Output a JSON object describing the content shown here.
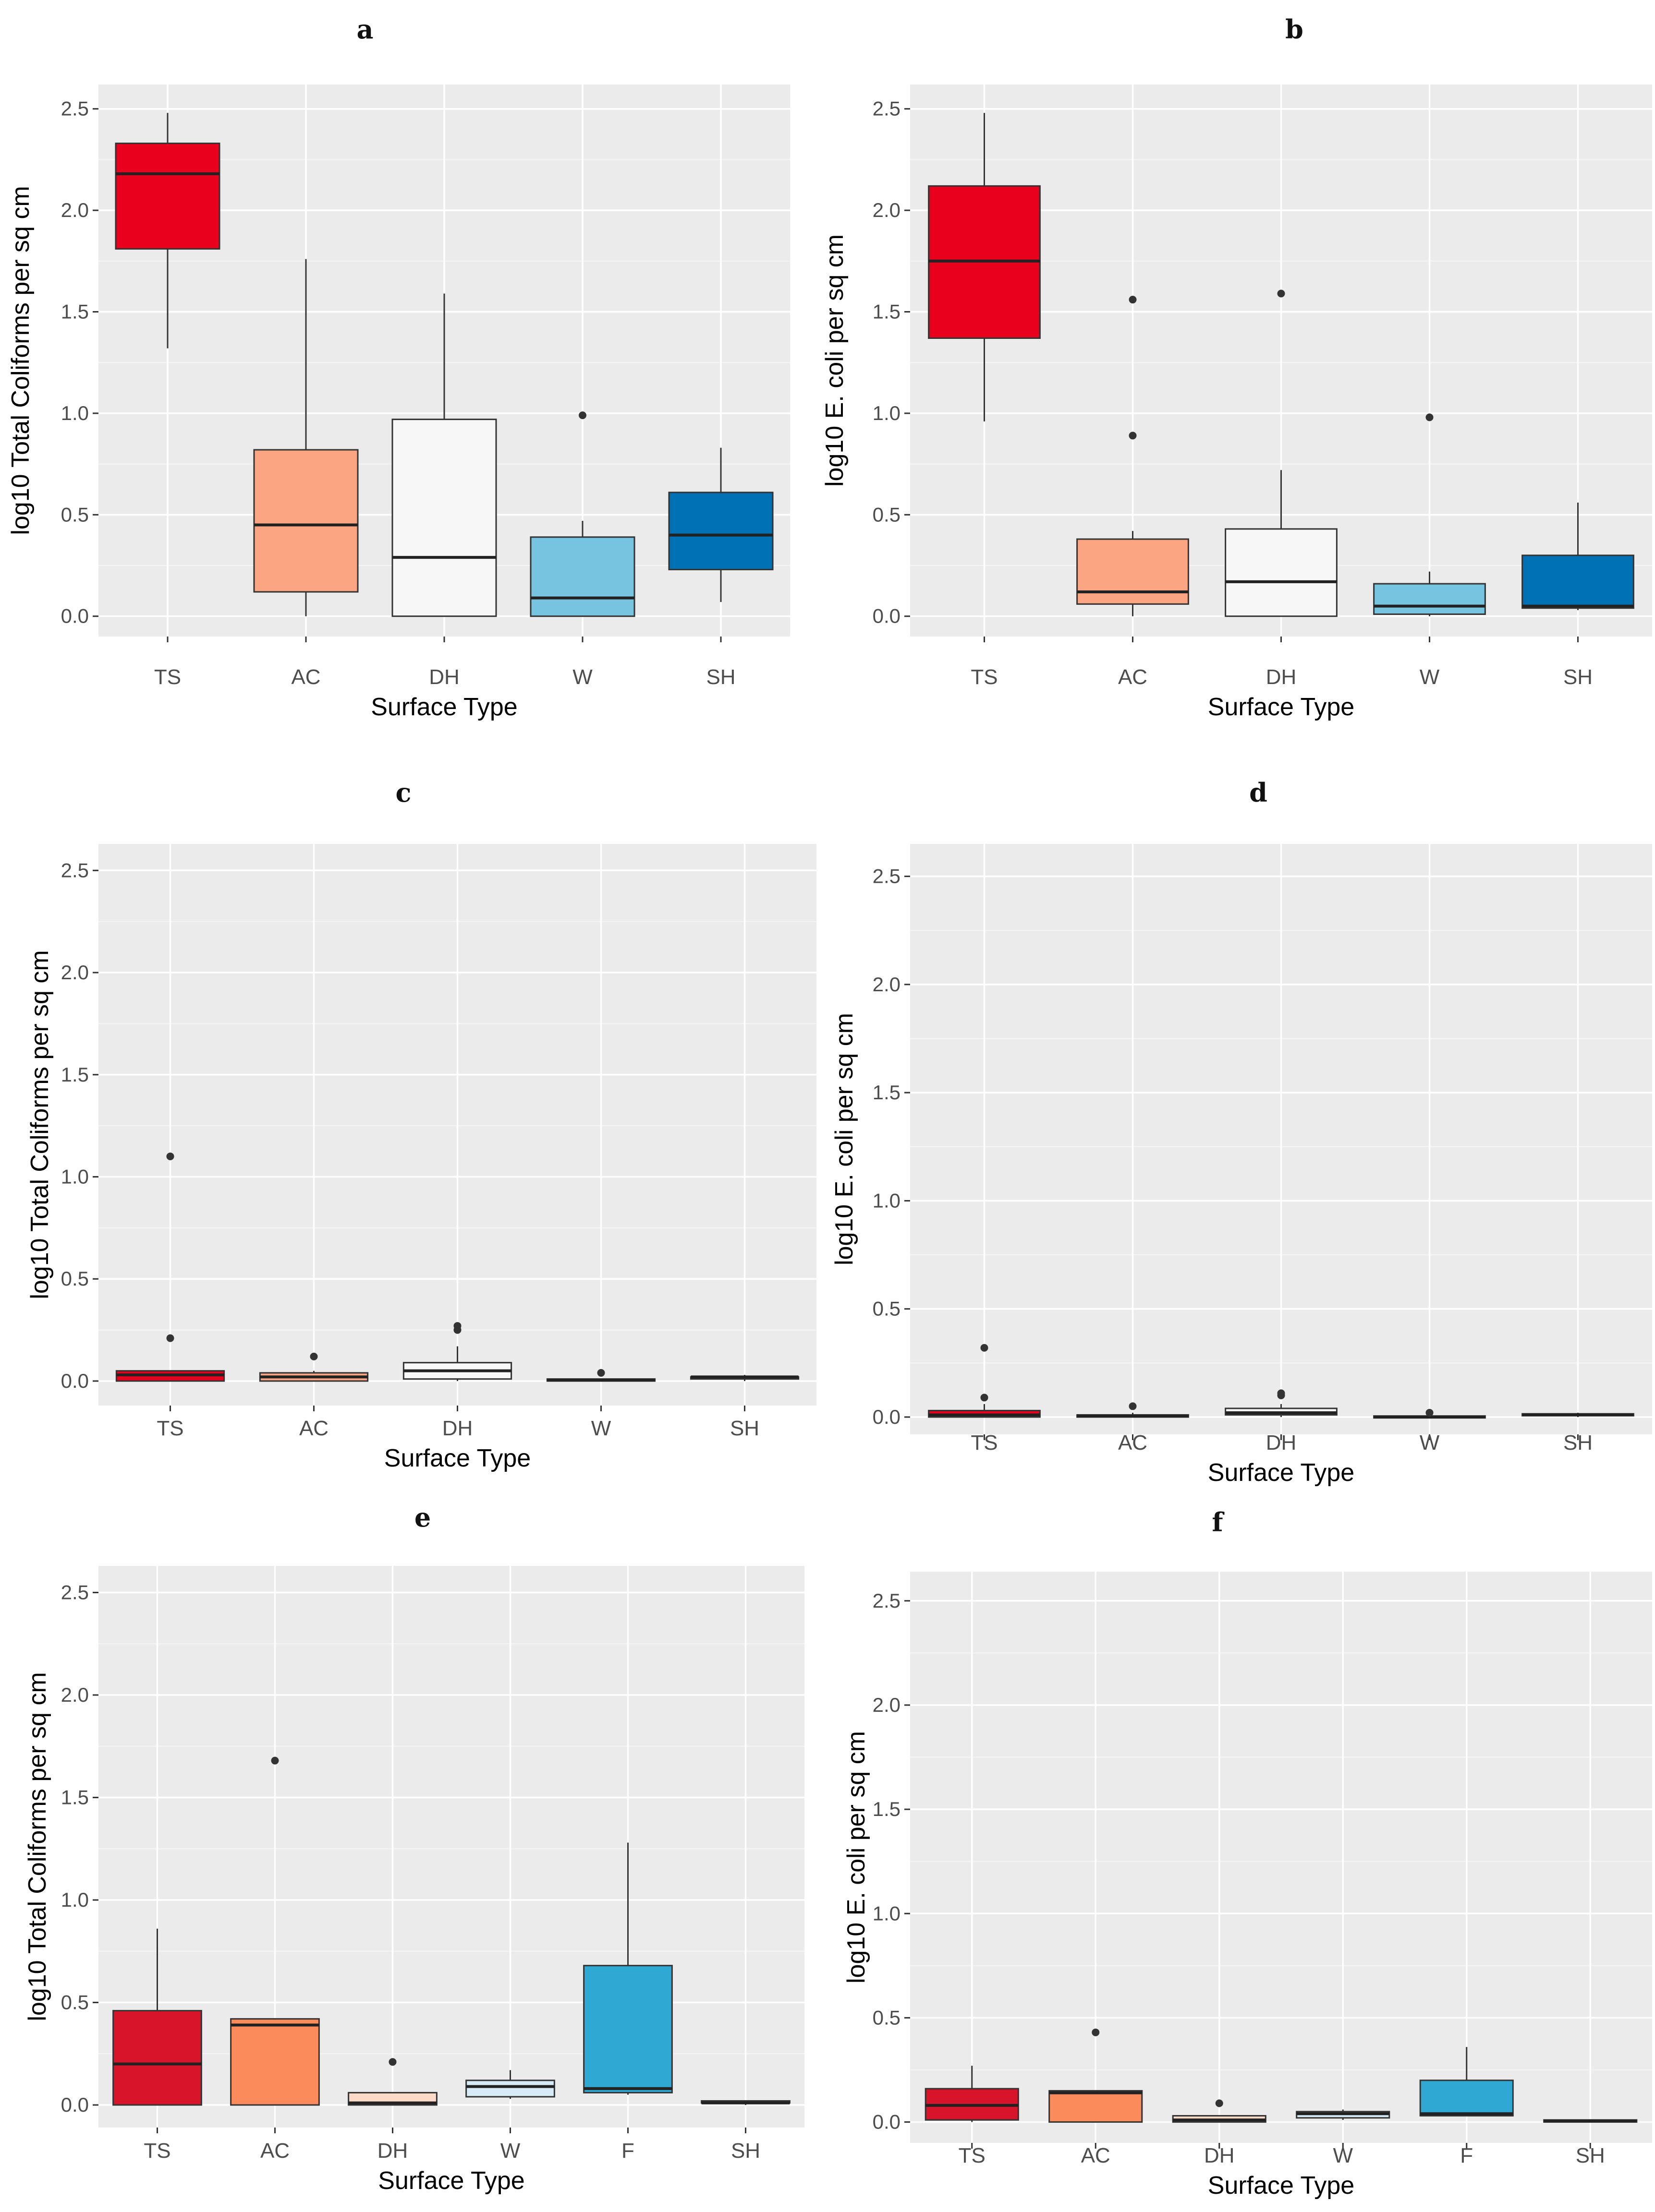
{
  "chart_data": [
    {
      "panel": "a",
      "type": "box",
      "xlabel": "Surface Type",
      "ylabel": "log10 Total Coliforms per sq cm",
      "ylim": [
        -0.1,
        2.62
      ],
      "yticks": [
        "0.0",
        "0.5",
        "1.0",
        "1.5",
        "2.0",
        "2.5"
      ],
      "grid": true,
      "categories": [
        "TS",
        "AC",
        "DH",
        "W",
        "SH"
      ],
      "boxes": [
        {
          "min": 1.32,
          "q1": 1.81,
          "median": 2.18,
          "q3": 2.33,
          "max": 2.48,
          "outliers": [],
          "color": "#E8001C"
        },
        {
          "min": 0.0,
          "q1": 0.12,
          "median": 0.45,
          "q3": 0.82,
          "max": 1.76,
          "outliers": [],
          "color": "#FCA582"
        },
        {
          "min": 0.0,
          "q1": 0.0,
          "median": 0.29,
          "q3": 0.97,
          "max": 1.59,
          "outliers": [],
          "color": "#F7F7F7"
        },
        {
          "min": 0.0,
          "q1": 0.0,
          "median": 0.09,
          "q3": 0.39,
          "max": 0.47,
          "outliers": [
            0.99
          ],
          "color": "#76C4E0"
        },
        {
          "min": 0.07,
          "q1": 0.23,
          "median": 0.4,
          "q3": 0.61,
          "max": 0.83,
          "outliers": [],
          "color": "#0071B5"
        }
      ]
    },
    {
      "panel": "b",
      "type": "box",
      "xlabel": "Surface Type",
      "ylabel": "log10 E. coli per sq cm",
      "ylim": [
        -0.1,
        2.62
      ],
      "yticks": [
        "0.0",
        "0.5",
        "1.0",
        "1.5",
        "2.0",
        "2.5"
      ],
      "grid": true,
      "categories": [
        "TS",
        "AC",
        "DH",
        "W",
        "SH"
      ],
      "boxes": [
        {
          "min": 0.96,
          "q1": 1.37,
          "median": 1.75,
          "q3": 2.12,
          "max": 2.48,
          "outliers": [],
          "color": "#E8001C"
        },
        {
          "min": 0.0,
          "q1": 0.06,
          "median": 0.12,
          "q3": 0.38,
          "max": 0.42,
          "outliers": [
            0.89,
            1.56
          ],
          "color": "#FCA582"
        },
        {
          "min": 0.0,
          "q1": 0.0,
          "median": 0.17,
          "q3": 0.43,
          "max": 0.72,
          "outliers": [
            1.59
          ],
          "color": "#F7F7F7"
        },
        {
          "min": 0.0,
          "q1": 0.01,
          "median": 0.05,
          "q3": 0.16,
          "max": 0.22,
          "outliers": [
            0.98
          ],
          "color": "#76C4E0"
        },
        {
          "min": 0.03,
          "q1": 0.04,
          "median": 0.05,
          "q3": 0.3,
          "max": 0.56,
          "outliers": [],
          "color": "#0071B5"
        }
      ]
    },
    {
      "panel": "c",
      "type": "box",
      "xlabel": "Surface Type",
      "ylabel": "log10 Total Coliforms per sq cm",
      "ylim": [
        -0.12,
        2.63
      ],
      "yticks": [
        "0.0",
        "0.5",
        "1.0",
        "1.5",
        "2.0",
        "2.5"
      ],
      "grid": true,
      "categories": [
        "TS",
        "AC",
        "DH",
        "W",
        "SH"
      ],
      "boxes": [
        {
          "min": 0.0,
          "q1": 0.0,
          "median": 0.03,
          "q3": 0.05,
          "max": 0.05,
          "outliers": [
            0.21,
            1.1
          ],
          "color": "#E8001C"
        },
        {
          "min": 0.0,
          "q1": 0.0,
          "median": 0.02,
          "q3": 0.04,
          "max": 0.05,
          "outliers": [
            0.12
          ],
          "color": "#FCA582"
        },
        {
          "min": 0.0,
          "q1": 0.01,
          "median": 0.05,
          "q3": 0.09,
          "max": 0.17,
          "outliers": [
            0.25,
            0.27
          ],
          "color": "#F7F7F7"
        },
        {
          "min": 0.0,
          "q1": 0.0,
          "median": 0.005,
          "q3": 0.01,
          "max": 0.01,
          "outliers": [
            0.04
          ],
          "color": "#76C4E0"
        },
        {
          "min": 0.0,
          "q1": 0.01,
          "median": 0.02,
          "q3": 0.02,
          "max": 0.03,
          "outliers": [],
          "color": "#0071B5"
        }
      ]
    },
    {
      "panel": "d",
      "type": "box",
      "xlabel": "Surface Type",
      "ylabel": "log10 E. coli per sq cm",
      "ylim": [
        -0.08,
        2.65
      ],
      "yticks": [
        "0.0",
        "0.5",
        "1.0",
        "1.5",
        "2.0",
        "2.5"
      ],
      "grid": true,
      "categories": [
        "TS",
        "AC",
        "DH",
        "W",
        "SH"
      ],
      "boxes": [
        {
          "min": 0.0,
          "q1": 0.0,
          "median": 0.01,
          "q3": 0.03,
          "max": 0.06,
          "outliers": [
            0.09,
            0.32
          ],
          "color": "#E8001C"
        },
        {
          "min": 0.0,
          "q1": 0.0,
          "median": 0.005,
          "q3": 0.01,
          "max": 0.02,
          "outliers": [
            0.05
          ],
          "color": "#FCA582"
        },
        {
          "min": 0.0,
          "q1": 0.01,
          "median": 0.02,
          "q3": 0.04,
          "max": 0.06,
          "outliers": [
            0.1,
            0.11
          ],
          "color": "#F7F7F7"
        },
        {
          "min": 0.0,
          "q1": 0.0,
          "median": 0.0,
          "q3": 0.005,
          "max": 0.01,
          "outliers": [
            0.02
          ],
          "color": "#76C4E0"
        },
        {
          "min": 0.0,
          "q1": 0.01,
          "median": 0.01,
          "q3": 0.015,
          "max": 0.02,
          "outliers": [],
          "color": "#0071B5"
        }
      ]
    },
    {
      "panel": "e",
      "type": "box",
      "xlabel": "Surface Type",
      "ylabel": "log10 Total Coliforms per sq cm",
      "ylim": [
        -0.11,
        2.63
      ],
      "yticks": [
        "0.0",
        "0.5",
        "1.0",
        "1.5",
        "2.0",
        "2.5"
      ],
      "grid": true,
      "categories": [
        "TS",
        "AC",
        "DH",
        "W",
        "F",
        "SH"
      ],
      "boxes": [
        {
          "min": 0.0,
          "q1": 0.0,
          "median": 0.2,
          "q3": 0.46,
          "max": 0.86,
          "outliers": [],
          "color": "#D7142A"
        },
        {
          "min": 0.0,
          "q1": 0.0,
          "median": 0.39,
          "q3": 0.42,
          "max": 0.42,
          "outliers": [
            1.68
          ],
          "color": "#FC8B5C"
        },
        {
          "min": 0.0,
          "q1": 0.0,
          "median": 0.01,
          "q3": 0.06,
          "max": 0.06,
          "outliers": [
            0.21
          ],
          "color": "#FDD9C7"
        },
        {
          "min": 0.03,
          "q1": 0.04,
          "median": 0.09,
          "q3": 0.12,
          "max": 0.17,
          "outliers": [],
          "color": "#D6EBF5"
        },
        {
          "min": 0.05,
          "q1": 0.06,
          "median": 0.08,
          "q3": 0.68,
          "max": 1.28,
          "outliers": [],
          "color": "#2FA8D3"
        },
        {
          "min": 0.0,
          "q1": 0.01,
          "median": 0.01,
          "q3": 0.02,
          "max": 0.02,
          "outliers": [],
          "color": "#0C5DAA"
        }
      ]
    },
    {
      "panel": "f",
      "type": "box",
      "xlabel": "Surface Type",
      "ylabel": "log10 E. coli per sq cm",
      "ylim": [
        -0.1,
        2.64
      ],
      "yticks": [
        "0.0",
        "0.5",
        "1.0",
        "1.5",
        "2.0",
        "2.5"
      ],
      "grid": true,
      "categories": [
        "TS",
        "AC",
        "DH",
        "W",
        "F",
        "SH"
      ],
      "boxes": [
        {
          "min": 0.0,
          "q1": 0.01,
          "median": 0.08,
          "q3": 0.16,
          "max": 0.27,
          "outliers": [],
          "color": "#D7142A"
        },
        {
          "min": 0.0,
          "q1": 0.0,
          "median": 0.14,
          "q3": 0.15,
          "max": 0.15,
          "outliers": [
            0.43
          ],
          "color": "#FC8B5C"
        },
        {
          "min": 0.0,
          "q1": 0.0,
          "median": 0.01,
          "q3": 0.03,
          "max": 0.03,
          "outliers": [
            0.09
          ],
          "color": "#FDD9C7"
        },
        {
          "min": 0.01,
          "q1": 0.02,
          "median": 0.04,
          "q3": 0.05,
          "max": 0.06,
          "outliers": [],
          "color": "#D6EBF5"
        },
        {
          "min": 0.03,
          "q1": 0.03,
          "median": 0.04,
          "q3": 0.2,
          "max": 0.36,
          "outliers": [],
          "color": "#2FA8D3"
        },
        {
          "min": 0.0,
          "q1": 0.0,
          "median": 0.005,
          "q3": 0.01,
          "max": 0.01,
          "outliers": [],
          "color": "#0C5DAA"
        }
      ]
    }
  ]
}
